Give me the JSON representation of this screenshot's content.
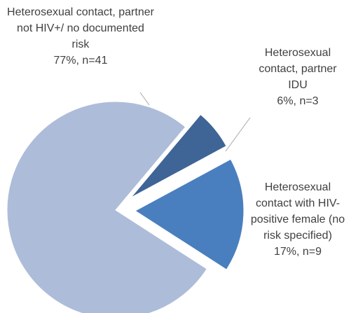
{
  "chart_data": {
    "type": "pie",
    "categories": [
      "Heterosexual contact, partner not HIV+/ no documented risk",
      "Heterosexual contact, partner IDU",
      "Heterosexual contact with HIV-positive female (no risk specified)"
    ],
    "values": [
      77,
      6,
      17
    ],
    "value_labels": [
      "77%, n=41",
      "6%, n=3",
      "17%, n=9"
    ],
    "colors": [
      "#adbcd9",
      "#3f6496",
      "#4a7fbf"
    ]
  }
}
